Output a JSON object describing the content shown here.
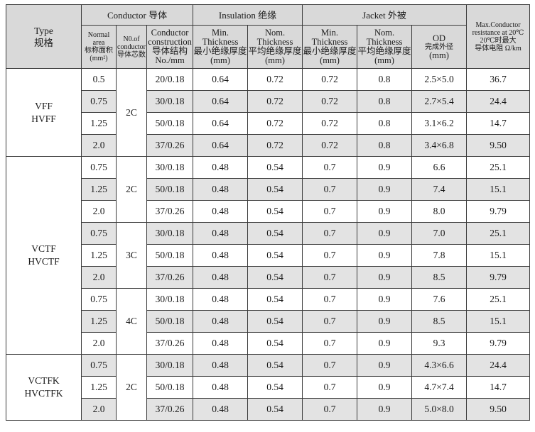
{
  "header": {
    "type": "Type",
    "type_cn": "规格",
    "conductor": "Conductor 导体",
    "insulation": "Insulation 绝缘",
    "jacket": "Jacket 外被",
    "max_resistance": [
      "Max.Conductor",
      "resistance at 20℃",
      "20℃时最大",
      "导体电阻 Ω/km"
    ],
    "normal_area": [
      "Normal",
      "area",
      "标称面积",
      "(mm²)"
    ],
    "no_conductor": [
      "N0.of",
      "conductor",
      "导体芯数"
    ],
    "construction": [
      "Conductor",
      "construction",
      "导体结构",
      "No./mm"
    ],
    "ins_min": [
      "Min.",
      "Thickness",
      "最小绝缘厚度",
      "(mm)"
    ],
    "ins_nom": [
      "Nom.",
      "Thickness",
      "平均绝缘厚度",
      "(mm)"
    ],
    "jac_min": [
      "Min.",
      "Thickness",
      "最小绝缘厚度",
      "(mm)"
    ],
    "jac_nom": [
      "Nom.",
      "Thickness",
      "平均绝缘厚度",
      "(mm)"
    ],
    "od": [
      "OD",
      "完成外径",
      "(mm)"
    ]
  },
  "types": [
    {
      "name": [
        "VFF",
        "HVFF"
      ],
      "rows": 4
    },
    {
      "name": [
        "VCTF",
        "HVCTF"
      ],
      "rows": 9
    },
    {
      "name": [
        "VCTFK",
        "HVCTFK"
      ],
      "rows": 3
    }
  ],
  "cores": [
    {
      "label": "2C",
      "rows": 4
    },
    {
      "label": "2C",
      "rows": 3
    },
    {
      "label": "3C",
      "rows": 3
    },
    {
      "label": "4C",
      "rows": 3
    },
    {
      "label": "2C",
      "rows": 3
    }
  ],
  "rows": [
    {
      "area": "0.5",
      "construction": "20/0.18",
      "ins_min": "0.64",
      "ins_nom": "0.72",
      "jac_min": "0.72",
      "jac_nom": "0.8",
      "od": "2.5×5.0",
      "resistance": "36.7"
    },
    {
      "area": "0.75",
      "construction": "30/0.18",
      "ins_min": "0.64",
      "ins_nom": "0.72",
      "jac_min": "0.72",
      "jac_nom": "0.8",
      "od": "2.7×5.4",
      "resistance": "24.4"
    },
    {
      "area": "1.25",
      "construction": "50/0.18",
      "ins_min": "0.64",
      "ins_nom": "0.72",
      "jac_min": "0.72",
      "jac_nom": "0.8",
      "od": "3.1×6.2",
      "resistance": "14.7"
    },
    {
      "area": "2.0",
      "construction": "37/0.26",
      "ins_min": "0.64",
      "ins_nom": "0.72",
      "jac_min": "0.72",
      "jac_nom": "0.8",
      "od": "3.4×6.8",
      "resistance": "9.50"
    },
    {
      "area": "0.75",
      "construction": "30/0.18",
      "ins_min": "0.48",
      "ins_nom": "0.54",
      "jac_min": "0.7",
      "jac_nom": "0.9",
      "od": "6.6",
      "resistance": "25.1"
    },
    {
      "area": "1.25",
      "construction": "50/0.18",
      "ins_min": "0.48",
      "ins_nom": "0.54",
      "jac_min": "0.7",
      "jac_nom": "0.9",
      "od": "7.4",
      "resistance": "15.1"
    },
    {
      "area": "2.0",
      "construction": "37/0.26",
      "ins_min": "0.48",
      "ins_nom": "0.54",
      "jac_min": "0.7",
      "jac_nom": "0.9",
      "od": "8.0",
      "resistance": "9.79"
    },
    {
      "area": "0.75",
      "construction": "30/0.18",
      "ins_min": "0.48",
      "ins_nom": "0.54",
      "jac_min": "0.7",
      "jac_nom": "0.9",
      "od": "7.0",
      "resistance": "25.1"
    },
    {
      "area": "1.25",
      "construction": "50/0.18",
      "ins_min": "0.48",
      "ins_nom": "0.54",
      "jac_min": "0.7",
      "jac_nom": "0.9",
      "od": "7.8",
      "resistance": "15.1"
    },
    {
      "area": "2.0",
      "construction": "37/0.26",
      "ins_min": "0.48",
      "ins_nom": "0.54",
      "jac_min": "0.7",
      "jac_nom": "0.9",
      "od": "8.5",
      "resistance": "9.79"
    },
    {
      "area": "0.75",
      "construction": "30/0.18",
      "ins_min": "0.48",
      "ins_nom": "0.54",
      "jac_min": "0.7",
      "jac_nom": "0.9",
      "od": "7.6",
      "resistance": "25.1"
    },
    {
      "area": "1.25",
      "construction": "50/0.18",
      "ins_min": "0.48",
      "ins_nom": "0.54",
      "jac_min": "0.7",
      "jac_nom": "0.9",
      "od": "8.5",
      "resistance": "15.1"
    },
    {
      "area": "2.0",
      "construction": "37/0.26",
      "ins_min": "0.48",
      "ins_nom": "0.54",
      "jac_min": "0.7",
      "jac_nom": "0.9",
      "od": "9.3",
      "resistance": "9.79"
    },
    {
      "area": "0.75",
      "construction": "30/0.18",
      "ins_min": "0.48",
      "ins_nom": "0.54",
      "jac_min": "0.7",
      "jac_nom": "0.9",
      "od": "4.3×6.6",
      "resistance": "24.4"
    },
    {
      "area": "1.25",
      "construction": "50/0.18",
      "ins_min": "0.48",
      "ins_nom": "0.54",
      "jac_min": "0.7",
      "jac_nom": "0.9",
      "od": "4.7×7.4",
      "resistance": "14.7"
    },
    {
      "area": "2.0",
      "construction": "37/0.26",
      "ins_min": "0.48",
      "ins_nom": "0.54",
      "jac_min": "0.7",
      "jac_nom": "0.9",
      "od": "5.0×8.0",
      "resistance": "9.50"
    }
  ],
  "colors": {
    "header_bg": "#d9d9d9",
    "shade_bg": "#e3e3e3",
    "border": "#3a3a3a"
  }
}
